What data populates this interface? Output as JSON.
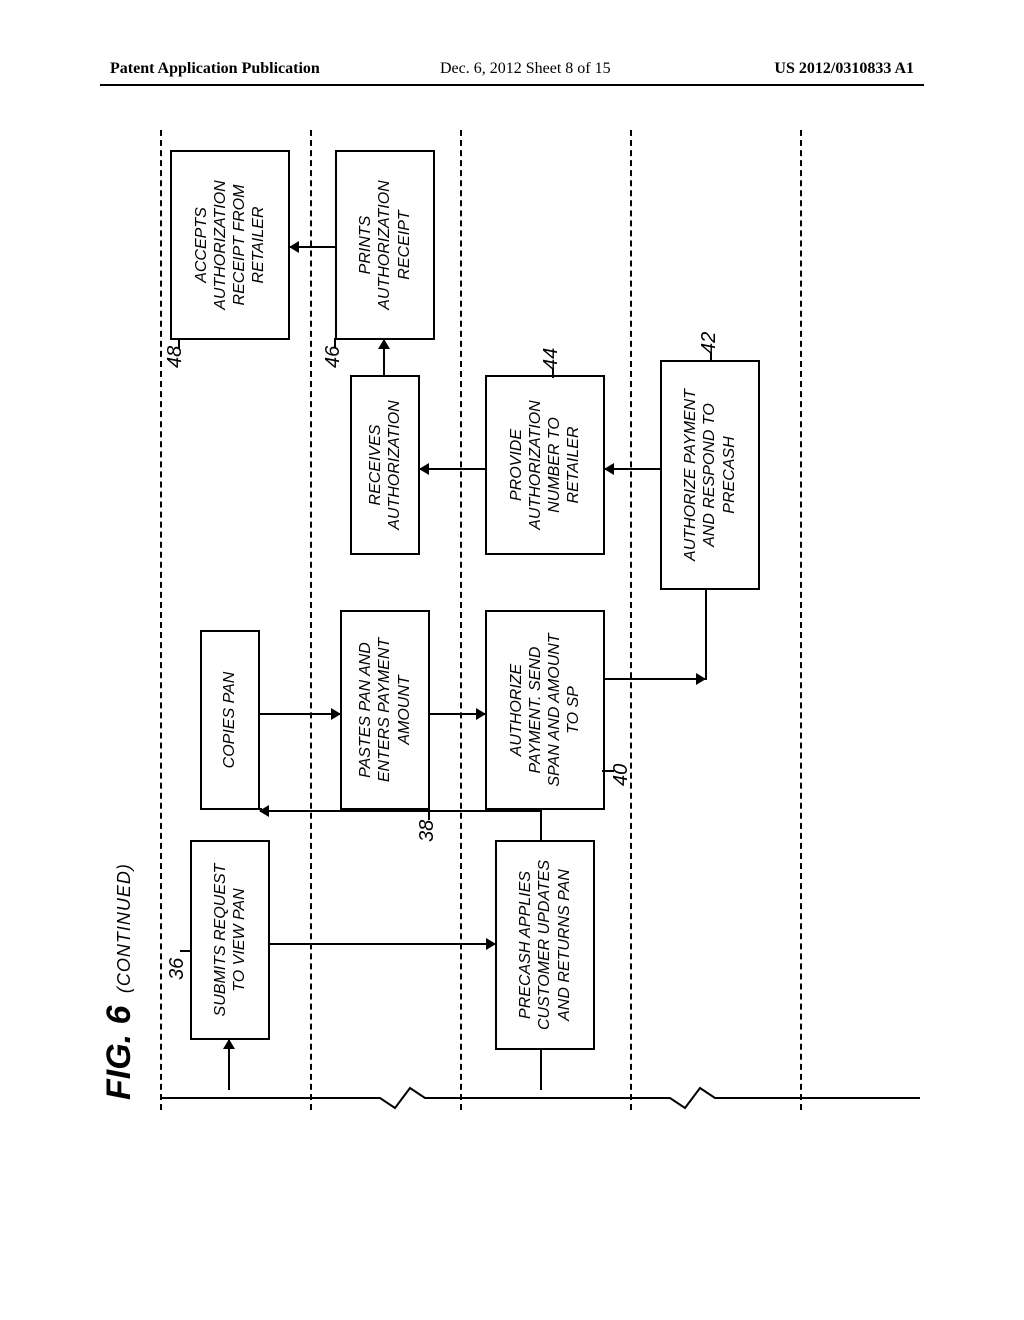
{
  "header": {
    "left": "Patent Application Publication",
    "center": "Dec. 6, 2012  Sheet 8 of 15",
    "right": "US 2012/0310833 A1"
  },
  "figure": {
    "title_main": "FIG. 6",
    "title_sub": "(CONTINUED)",
    "type": "flowchart",
    "lanes": {
      "count": 5,
      "y_dividers": [
        60,
        210,
        360,
        530,
        700
      ]
    },
    "boxes": {
      "b36": {
        "ref": "36",
        "text": "SUBMITS REQUEST\nTO VIEW PAN"
      },
      "b_copies": {
        "text": "COPIES PAN"
      },
      "b48": {
        "ref": "48",
        "text": "ACCEPTS\nAUTHORIZATION\nRECEIPT FROM\nRETAILER"
      },
      "b38": {
        "ref": "38",
        "text": "PASTES PAN AND\nENTERS PAYMENT\nAMOUNT"
      },
      "b_recv": {
        "text": "RECEIVES\nAUTHORIZATION"
      },
      "b46": {
        "ref": "46",
        "text": "PRINTS\nAUTHORIZATION\nRECEIPT"
      },
      "b_precash": {
        "text": "PRECASH APPLIES\nCUSTOMER UPDATES\nAND RETURNS PAN"
      },
      "b40": {
        "ref": "40",
        "text": "AUTHORIZE\nPAYMENT. SEND\nSPAN AND AMOUNT\nTO SP"
      },
      "b44": {
        "ref": "44",
        "text": "PROVIDE\nAUTHORIZATION\nNUMBER TO\nRETAILER"
      },
      "b42": {
        "ref": "42",
        "text": "AUTHORIZE PAYMENT\nAND RESPOND TO\nPRECASH"
      }
    },
    "style": {
      "stroke": "#000000",
      "background": "#ffffff",
      "font_family": "Arial",
      "font_style": "italic",
      "box_border_width": 2,
      "dash": "4 4"
    }
  }
}
